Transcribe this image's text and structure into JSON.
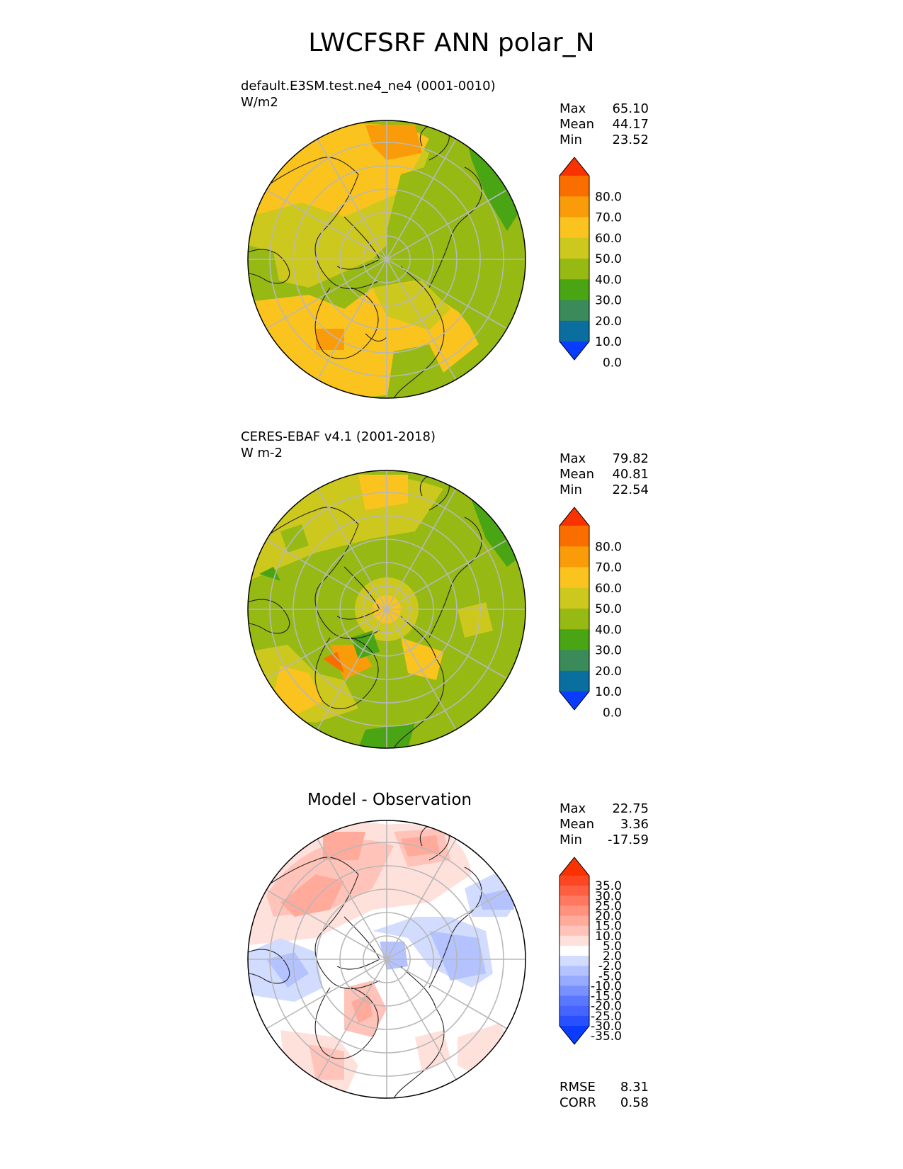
{
  "figure": {
    "title": "LWCFSRF ANN polar_N"
  },
  "panels": [
    {
      "id": "test",
      "subtitle_line1": "default.E3SM.test.ne4_ne4 (0001-0010)",
      "subtitle_line2": "W/m2",
      "stats": {
        "max_label": "Max",
        "max": "65.10",
        "mean_label": "Mean",
        "mean": "44.17",
        "min_label": "Min",
        "min": "23.52"
      },
      "colorbar": {
        "ticks": [
          "80.0",
          "70.0",
          "60.0",
          "50.0",
          "40.0",
          "30.0",
          "20.0",
          "10.0",
          "0.0"
        ]
      }
    },
    {
      "id": "reference",
      "subtitle_line1": "CERES-EBAF v4.1 (2001-2018)",
      "subtitle_line2": "W m-2",
      "stats": {
        "max_label": "Max",
        "max": "79.82",
        "mean_label": "Mean",
        "mean": "40.81",
        "min_label": "Min",
        "min": "22.54"
      },
      "colorbar": {
        "ticks": [
          "80.0",
          "70.0",
          "60.0",
          "50.0",
          "40.0",
          "30.0",
          "20.0",
          "10.0",
          "0.0"
        ]
      }
    },
    {
      "id": "difference",
      "title": "Model - Observation",
      "stats": {
        "max_label": "Max",
        "max": "22.75",
        "mean_label": "Mean",
        "mean": "3.36",
        "min_label": "Min",
        "min": "-17.59"
      },
      "metrics": {
        "rmse_label": "RMSE",
        "rmse": "8.31",
        "corr_label": "CORR",
        "corr": "0.58"
      },
      "colorbar": {
        "ticks": [
          "35.0",
          "30.0",
          "25.0",
          "20.0",
          "15.0",
          "10.0",
          "5.0",
          "2.0",
          "-2.0",
          "-5.0",
          "-10.0",
          "-15.0",
          "-20.0",
          "-25.0",
          "-30.0",
          "-35.0"
        ]
      }
    }
  ],
  "chart_data": [
    {
      "type": "heatmap",
      "projection": "north polar stereographic",
      "title": "default.E3SM.test.ne4_ne4 (0001-0010)",
      "units": "W/m2",
      "levels": [
        0,
        10,
        20,
        30,
        40,
        50,
        60,
        70,
        80
      ],
      "colors": [
        "#0a3cff",
        "#0a6e9e",
        "#3a8a5a",
        "#4aa514",
        "#96b914",
        "#cdc81e",
        "#fac31e",
        "#fa9b0a",
        "#fa6e00",
        "#fa3200"
      ],
      "max": 65.1,
      "mean": 44.17,
      "min": 23.52
    },
    {
      "type": "heatmap",
      "projection": "north polar stereographic",
      "title": "CERES-EBAF v4.1 (2001-2018)",
      "units": "W m-2",
      "levels": [
        0,
        10,
        20,
        30,
        40,
        50,
        60,
        70,
        80
      ],
      "colors": [
        "#0a3cff",
        "#0a6e9e",
        "#3a8a5a",
        "#4aa514",
        "#96b914",
        "#cdc81e",
        "#fac31e",
        "#fa9b0a",
        "#fa6e00",
        "#fa3200"
      ],
      "max": 79.82,
      "mean": 40.81,
      "min": 22.54
    },
    {
      "type": "heatmap",
      "projection": "north polar stereographic",
      "title": "Model - Observation",
      "levels": [
        -35,
        -30,
        -25,
        -20,
        -15,
        -10,
        -5,
        -2,
        2,
        5,
        10,
        15,
        20,
        25,
        30,
        35
      ],
      "colors": [
        "#0a3cff",
        "#2850ff",
        "#4664ff",
        "#5a78ff",
        "#7891ff",
        "#96aaff",
        "#b4c3ff",
        "#d2dcff",
        "#ffffff",
        "#ffe1dc",
        "#ffc3b9",
        "#ffaa9b",
        "#ff917d",
        "#ff785f",
        "#ff5f41",
        "#ff4623",
        "#fa3200"
      ],
      "max": 22.75,
      "mean": 3.36,
      "min": -17.59,
      "rmse": 8.31,
      "corr": 0.58
    }
  ]
}
